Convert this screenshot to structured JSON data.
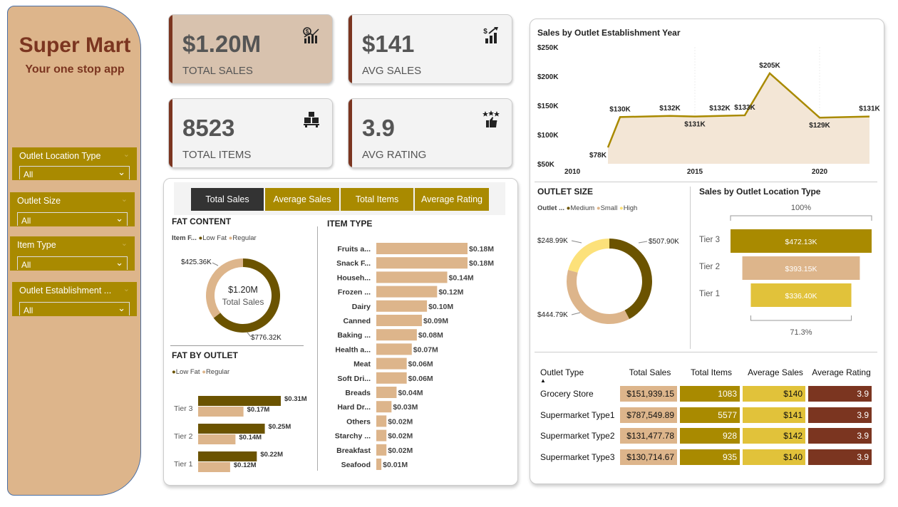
{
  "brand": {
    "title": "Super Mart",
    "tagline": "Your one stop app"
  },
  "slicers": [
    {
      "title": "Outlet Location Type",
      "value": "All"
    },
    {
      "title": "Outlet Size",
      "value": "All"
    },
    {
      "title": "Item Type",
      "value": "All"
    },
    {
      "title": "Outlet Establishment ...",
      "value": "All"
    }
  ],
  "kpis": [
    {
      "value": "$1.20M",
      "label": "TOTAL SALES",
      "icon": "chart-dollar-icon"
    },
    {
      "value": "$141",
      "label": "AVG SALES",
      "icon": "growth-dollar-icon"
    },
    {
      "value": "8523",
      "label": "TOTAL ITEMS",
      "icon": "boxes-icon"
    },
    {
      "value": "3.9",
      "label": "AVG RATING",
      "icon": "rating-thumb-icon"
    }
  ],
  "metric_buttons": [
    "Total Sales",
    "Average Sales",
    "Total Items",
    "Average Rating"
  ],
  "colors": {
    "dark": "#6B5300",
    "tan": "#DDB58B",
    "gold": "#A98A00",
    "yellow": "#E1C23A",
    "brown": "#7B3520",
    "lightyellow": "#FCE17A",
    "grey": "#555555"
  },
  "chart_data": [
    {
      "id": "fat_content",
      "type": "pie",
      "title": "FAT CONTENT",
      "legend_title": "Item F...",
      "center_value": "$1.20M",
      "center_label": "Total Sales",
      "slices": [
        {
          "name": "Low Fat",
          "value": 776.32,
          "label": "$776.32K"
        },
        {
          "name": "Regular",
          "value": 425.36,
          "label": "$425.36K"
        }
      ]
    },
    {
      "id": "fat_by_outlet",
      "type": "bar",
      "title": "FAT BY OUTLET",
      "categories": [
        "Tier 3",
        "Tier 2",
        "Tier 1"
      ],
      "series": [
        {
          "name": "Low Fat",
          "values": [
            0.31,
            0.25,
            0.22
          ],
          "labels": [
            "$0.31M",
            "$0.25M",
            "$0.22M"
          ]
        },
        {
          "name": "Regular",
          "values": [
            0.17,
            0.14,
            0.12
          ],
          "labels": [
            "$0.17M",
            "$0.14M",
            "$0.12M"
          ]
        }
      ]
    },
    {
      "id": "item_type",
      "type": "bar",
      "title": "ITEM TYPE",
      "categories": [
        "Fruits a...",
        "Snack F...",
        "Househ...",
        "Frozen ...",
        "Dairy",
        "Canned",
        "Baking ...",
        "Health a...",
        "Meat",
        "Soft Dri...",
        "Breads",
        "Hard Dr...",
        "Others",
        "Starchy ...",
        "Breakfast",
        "Seafood"
      ],
      "values": [
        0.18,
        0.18,
        0.14,
        0.12,
        0.1,
        0.09,
        0.08,
        0.07,
        0.06,
        0.06,
        0.04,
        0.03,
        0.02,
        0.02,
        0.02,
        0.01
      ],
      "labels": [
        "$0.18M",
        "$0.18M",
        "$0.14M",
        "$0.12M",
        "$0.10M",
        "$0.09M",
        "$0.08M",
        "$0.07M",
        "$0.06M",
        "$0.06M",
        "$0.04M",
        "$0.03M",
        "$0.02M",
        "$0.02M",
        "$0.02M",
        "$0.01M"
      ]
    },
    {
      "id": "establishment_year",
      "type": "area",
      "title": "Sales by Outlet Establishment Year",
      "x": [
        2011,
        2012,
        2014,
        2015,
        2016,
        2017,
        2018,
        2020,
        2022
      ],
      "values": [
        78,
        130,
        132,
        131,
        132,
        133,
        205,
        129,
        131
      ],
      "labels": [
        "$78K",
        "$130K",
        "$132K",
        "$131K",
        "$132K",
        "$133K",
        "$205K",
        "$129K",
        "$131K"
      ],
      "yticks": [
        "$250K",
        "$200K",
        "$150K",
        "$100K",
        "$50K"
      ],
      "xticks": [
        "2010",
        "2015",
        "2020"
      ],
      "ylim": [
        50,
        250
      ]
    },
    {
      "id": "outlet_size",
      "type": "pie",
      "title": "OUTLET SIZE",
      "legend_title": "Outlet ...",
      "slices": [
        {
          "name": "Medium",
          "value": 507.9,
          "label": "$507.90K"
        },
        {
          "name": "Small",
          "value": 444.79,
          "label": "$444.79K"
        },
        {
          "name": "High",
          "value": 248.99,
          "label": "$248.99K"
        }
      ]
    },
    {
      "id": "location_type",
      "type": "bar",
      "title": "Sales by Outlet Location Type",
      "top_label": "100%",
      "bottom_label": "71.3%",
      "categories": [
        "Tier 3",
        "Tier 2",
        "Tier 1"
      ],
      "values": [
        472.13,
        393.15,
        336.4
      ],
      "labels": [
        "$472.13K",
        "$393.15K",
        "$336.40K"
      ]
    },
    {
      "id": "outlet_type_table",
      "type": "table",
      "columns": [
        "Outlet Type",
        "Total Sales",
        "Total Items",
        "Average Sales",
        "Average Rating"
      ],
      "rows": [
        [
          "Grocery Store",
          "$151,939.15",
          "1083",
          "$140",
          "3.9"
        ],
        [
          "Supermarket Type1",
          "$787,549.89",
          "5577",
          "$141",
          "3.9"
        ],
        [
          "Supermarket Type2",
          "$131,477.78",
          "928",
          "$142",
          "3.9"
        ],
        [
          "Supermarket Type3",
          "$130,714.67",
          "935",
          "$140",
          "3.9"
        ]
      ]
    }
  ]
}
